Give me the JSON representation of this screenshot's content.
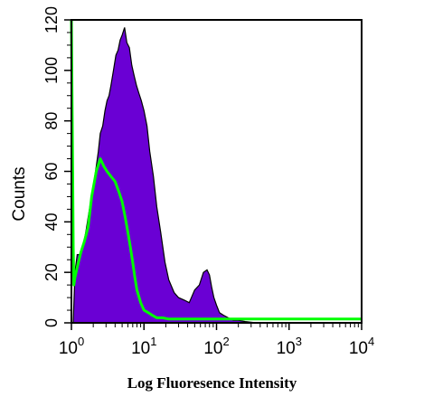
{
  "chart_data": {
    "type": "area",
    "xlabel": "Log Fluoresence Intensity",
    "ylabel": "Counts",
    "x_scale": "log",
    "xlim": [
      1,
      10000
    ],
    "ylim": [
      0,
      120
    ],
    "x_ticks": [
      {
        "value": 1,
        "base": "10",
        "exp": "0"
      },
      {
        "value": 10,
        "base": "10",
        "exp": "1"
      },
      {
        "value": 100,
        "base": "10",
        "exp": "2"
      },
      {
        "value": 1000,
        "base": "10",
        "exp": "3"
      },
      {
        "value": 10000,
        "base": "10",
        "exp": "4"
      }
    ],
    "y_ticks": [
      "0",
      "20",
      "40",
      "60",
      "80",
      "100",
      "120"
    ],
    "y_tick_values": [
      0,
      20,
      40,
      60,
      80,
      100,
      120
    ],
    "grid": false,
    "legend": "none",
    "series": [
      {
        "style": "filled",
        "color": "#6a00d4",
        "x": [
          1.06,
          1.12,
          1.2,
          1.3,
          1.45,
          1.6,
          1.75,
          1.9,
          2.05,
          2.2,
          2.35,
          2.5,
          2.7,
          2.9,
          3.1,
          3.3,
          3.5,
          3.8,
          4.1,
          4.4,
          4.7,
          5.0,
          5.4,
          5.8,
          6.3,
          6.8,
          7.3,
          7.9,
          8.5,
          9.2,
          10.0,
          11.0,
          12.0,
          13.5,
          15.0,
          17.0,
          19.5,
          22.0,
          26.0,
          30.0,
          36.0,
          42.0,
          50.0,
          58.0,
          66.0,
          74.0,
          80.0,
          86.0,
          92.0,
          100.0,
          110.0,
          125.0,
          145.0,
          170.0,
          200.0,
          250.0,
          350.0,
          600.0,
          1000.0,
          10000.0
        ],
        "y": [
          0,
          20,
          27,
          27,
          30,
          37,
          44,
          50,
          56,
          62,
          68,
          75,
          78,
          84,
          88,
          90,
          94,
          100,
          106,
          108,
          112,
          114,
          117,
          111,
          109,
          102,
          98,
          94,
          91,
          88,
          84,
          78,
          68,
          58,
          46,
          36,
          24,
          17,
          12,
          10,
          9,
          8,
          13,
          15,
          20,
          21,
          19,
          14,
          10,
          7,
          4,
          3,
          2,
          1,
          1,
          0.5,
          0,
          0,
          0,
          0
        ]
      },
      {
        "style": "line",
        "color": "#00ff00",
        "x": [
          1.0,
          1.02,
          1.04,
          1.06,
          1.08,
          1.12,
          1.2,
          1.35,
          1.5,
          1.7,
          1.9,
          2.2,
          2.5,
          2.8,
          3.1,
          3.5,
          4.0,
          4.5,
          5.0,
          5.5,
          6.0,
          6.5,
          7.0,
          7.5,
          8.0,
          9.0,
          10.0,
          11.5,
          13.0,
          15.0,
          18.0,
          22.0,
          28.0,
          35.0,
          45.0,
          60.0,
          80.0,
          110.0,
          150.0,
          200.0,
          300.0,
          10000.0
        ],
        "y": [
          120,
          90,
          60,
          30,
          15,
          18,
          22,
          28,
          32,
          38,
          50,
          60,
          65,
          62,
          60,
          58,
          56,
          52,
          48,
          42,
          36,
          30,
          24,
          18,
          13,
          8,
          5,
          4,
          3,
          2,
          2,
          1.5,
          1.5,
          1.5,
          1.5,
          1.5,
          1.5,
          1.5,
          1.5,
          1.5,
          1.5,
          1.5
        ]
      }
    ]
  }
}
